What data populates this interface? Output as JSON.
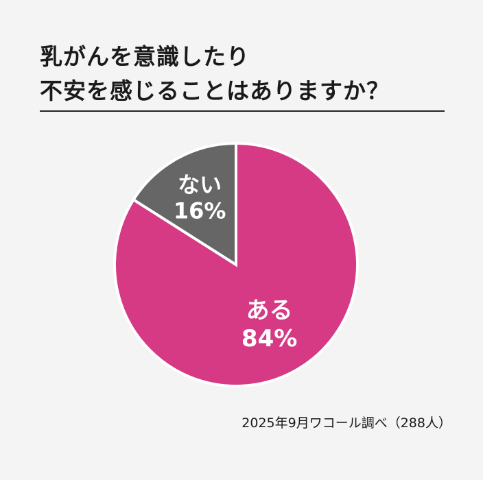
{
  "title": {
    "line1": "乳がんを意識したり",
    "line2": "不安を感じることはありますか？"
  },
  "source": "2025年9月ワコール調べ（288人）",
  "chart_data": {
    "type": "pie",
    "title": "乳がんを意識したり不安を感じることはありますか？",
    "slices": [
      {
        "label": "ある",
        "value": 84,
        "value_label": "84%",
        "color": "#d63a85"
      },
      {
        "label": "ない",
        "value": 16,
        "value_label": "16%",
        "color": "#666666"
      }
    ],
    "start": "12 o'clock, clockwise",
    "legend": "none (labels inside slices)"
  }
}
